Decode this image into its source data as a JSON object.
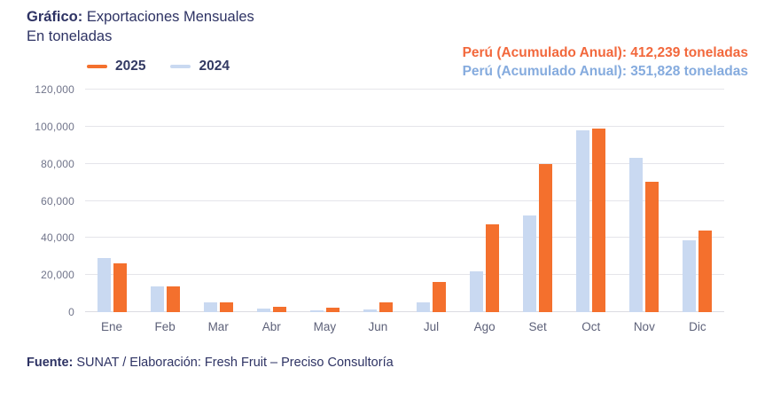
{
  "title": {
    "label_bold": "Gráfico:",
    "label_rest": " Exportaciones Mensuales",
    "subtitle": "En toneladas"
  },
  "legend": {
    "items": [
      {
        "label": "2025",
        "color": "#F4702D"
      },
      {
        "label": "2024",
        "color": "#C9D9F1"
      }
    ]
  },
  "annotations": [
    {
      "text": "Perú (Acumulado Anual): 412,239 toneladas",
      "color": "#F2683C"
    },
    {
      "text": "Perú (Acumulado Anual): 351,828 toneladas",
      "color": "#85ABDE"
    }
  ],
  "footer": {
    "label_bold": "Fuente:",
    "label_rest": " SUNAT / Elaboración: Fresh Fruit – Preciso Consultoría"
  },
  "chart_data": {
    "type": "bar",
    "title": "Exportaciones Mensuales",
    "ylabel": "toneladas",
    "categories": [
      "Ene",
      "Feb",
      "Mar",
      "Abr",
      "May",
      "Jun",
      "Jul",
      "Ago",
      "Set",
      "Oct",
      "Nov",
      "Dic"
    ],
    "series": [
      {
        "name": "2024",
        "color": "#C9D9F1",
        "total_label": "351,828",
        "values": [
          29000,
          13700,
          5300,
          2100,
          1200,
          1400,
          5300,
          21900,
          51900,
          98200,
          83200,
          38600
        ]
      },
      {
        "name": "2025",
        "color": "#F4702D",
        "total_label": "412,239",
        "values": [
          26200,
          13800,
          5300,
          2700,
          2300,
          5300,
          16300,
          47500,
          80000,
          98900,
          70400,
          43800
        ]
      }
    ],
    "ylim": [
      0,
      120000
    ],
    "grid": "horizontal",
    "legend_position": "top-left",
    "yticks": [
      {
        "value": 0,
        "label": "0"
      },
      {
        "value": 20000,
        "label": "20,000"
      },
      {
        "value": 40000,
        "label": "40,000"
      },
      {
        "value": 60000,
        "label": "60,000"
      },
      {
        "value": 80000,
        "label": "80,000"
      },
      {
        "value": 100000,
        "label": "100,000"
      },
      {
        "value": 120000,
        "label": "120,000"
      }
    ]
  }
}
